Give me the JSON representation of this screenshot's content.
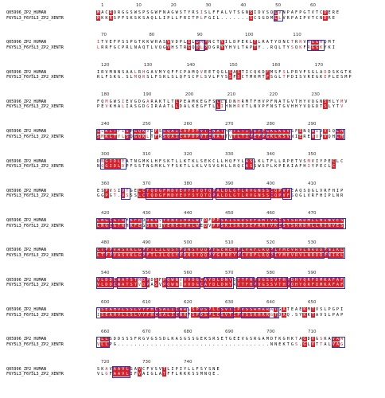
{
  "colors": {
    "identical_bg": "#d8202a",
    "similar_fg": "#d8202a",
    "box": "#2b32c8"
  },
  "sequence_names": [
    "Q05996_ZP2_HUMAN",
    "F6Y5L3_F6Y5L3_ZP2_XENTR"
  ],
  "blocks": [
    {
      "ruler": [
        "1",
        "10",
        "20",
        "30",
        "40",
        "50",
        "60"
      ],
      "seq1": "MACRQRGGSWSPSGWFNAGWSTYRSISLFFALVTSGNSIDVSQLVNPAFPGTVTCDERE",
      "seq2": "MKKRSPFSKSKSAQLLIPLLFRITPLFGIL.......SCSGDMLLVRPAIPVTCNDRE"
    },
    {
      "ruler": [
        "70",
        "80",
        "90",
        "100",
        "110"
      ],
      "seq1": "ITVEFPSSPGTKKWHASVVDPLGLDMPNCTYILDPEKLTLRATYDNCTRRVHGGHQMT",
      "seq2": "LRRFGCPRLNAQTLVQGVHSTRGQDLPDGRYYHVLTAPTY..RQLTYSQKFRGGKYKI"
    },
    {
      "ruler": [
        "120",
        "130",
        "140",
        "150",
        "160",
        "170"
      ],
      "seq1": "IRVMNNSAALRHGAVMYQFFCPAMQVEETQGLSASTICQKDFMSFSLPRVFSGLADDSKGTK",
      "seq2": "RLFSKG.SLMQRSLFSRLSLQFSCPLSVLPYSSFSCTMRMTFSGLTPDISVREGKEPLESMP"
    },
    {
      "ruler": [
        "180",
        "190",
        "200",
        "210",
        "220",
        "230"
      ],
      "seq1": "FQMGWSIEVGDGARAKTLTLPEAMKEGFSLLIDNHRMTFHVPFNATGVTHYVQGNSHLYMV",
      "seq2": "PEVKHALIASGDGIRAATLLDALKEGFTLLIHNHRVTLNVPFNSTGVHHYVQGDTSLYTV"
    },
    {
      "ruler": [
        "240",
        "250",
        "260",
        "270",
        "280",
        "290"
      ],
      "seq1": "SLKLTFISPGQKVIFSSQAICAPDPVTCNATHMTLTIPEFPGKLKSVSFENQNIDVSQLH",
      "seq2": "SMKLTYLSQGQKLTFRSQAICAPDPVTCNATTVTLTIPEFPGKLKSVNIERENVPVQHLH"
    },
    {
      "ruler": [
        "300",
        "310",
        "320",
        "330",
        "340",
        "350"
      ],
      "seq1": "DNGIDLEATNGMKLHFSKTLLKTKLSEKCLLHQFYLASLKLTFLLRPETVSMVIYPECLC",
      "seq2": "NQGIDLDPFSSTNGMKLYFSKTLLKLVSVGHLLRQCASSWSPLKPEAIAFHIYPECLC"
    },
    {
      "ruler": [
        "360",
        "370",
        "380",
        "390",
        "400",
        "410"
      ],
      "seq1": "ESPVSIVTGELCTQDGFMDVEVYSYQTQPALDLGTLRVGNSSCQPVFEAQSQGLVRFHIP",
      "seq2": "GGPGT.VSSSLCTQDGFMDVEVYSYQTQPALDLGTLRVGNSSCQPVFSQGLVRFHIPLNR"
    },
    {
      "ruler": [
        "420",
        "430",
        "440",
        "450",
        "460",
        "470"
      ],
      "seq1": "LNGCGTRYKFEDDKVVYENEIHALWTDFPPSKISRDSEFRMTVKCSYSRNDMLLNINVES",
      "seq2": "LNGCGTRHKFEGDKVIYENEIHALWEDVPPSKISRDSEFRMTVKCSYSRNDMLLNINVES"
    },
    {
      "ruler": [
        "480",
        "490",
        "500",
        "510",
        "520",
        "530"
      ],
      "seq1": "LTPPVASVKLGPFTLILQSYPDNSYQQPYGENEYPLVRFLRQPIYMEVRVLNRDDPNIKL",
      "seq2": "LTPPVASVKLGPFTLILQSYPDNSYQQPYGENEYPLVRFLRQPIYMEVRVLNRDDPNIKL"
    },
    {
      "ruler": [
        "540",
        "550",
        "560",
        "570",
        "580",
        "590"
      ],
      "seq1": "VLDDCWATSTMDPDSFPQWNVVVDGCAYDLDNYQTTFHPVGSSVTHPDHYQRFDMKAFAF",
      "seq2": "VLDDCWATSTVDPASVPQWNIVVDGCAYDLDNYRTTFHPVGSSVTHPDHYQRFDMKAFAF"
    },
    {
      "ruler": [
        "600",
        "610",
        "620",
        "630",
        "640",
        "650"
      ],
      "seq1": "VSEAHVLSSLVYFHCSALICNRLSPDSPLCSVTCPVSSRHRRATGATEAEKMTVSLPGPI",
      "seq2": "ISEAHVLSSLVYFHCSALICNRFSPDSPLCSVTCPVSSRHRRGTDAQ.SYKKTAVSLPAP"
    },
    {
      "ruler": [
        "660",
        "670",
        "680",
        "690",
        "700",
        "710"
      ],
      "seq1": "LLLSDDSSSFRGVGSSDLKASGSSGEKSRSETGEEVGSRGAMDTKGHKTAGDVGSKAVAA",
      "seq2": "VLLPG.....................................NNEKTGS.GLVTTALVAG"
    },
    {
      "ruler": [
        "720",
        "730",
        "740"
      ],
      "seq1": "SKAVAAVLGAVCFVSVTLIPIYLLFSYSNE",
      "seq2": "VLGFAAVLIFVAIGLATFFLRKKSSMNQE."
    }
  ]
}
